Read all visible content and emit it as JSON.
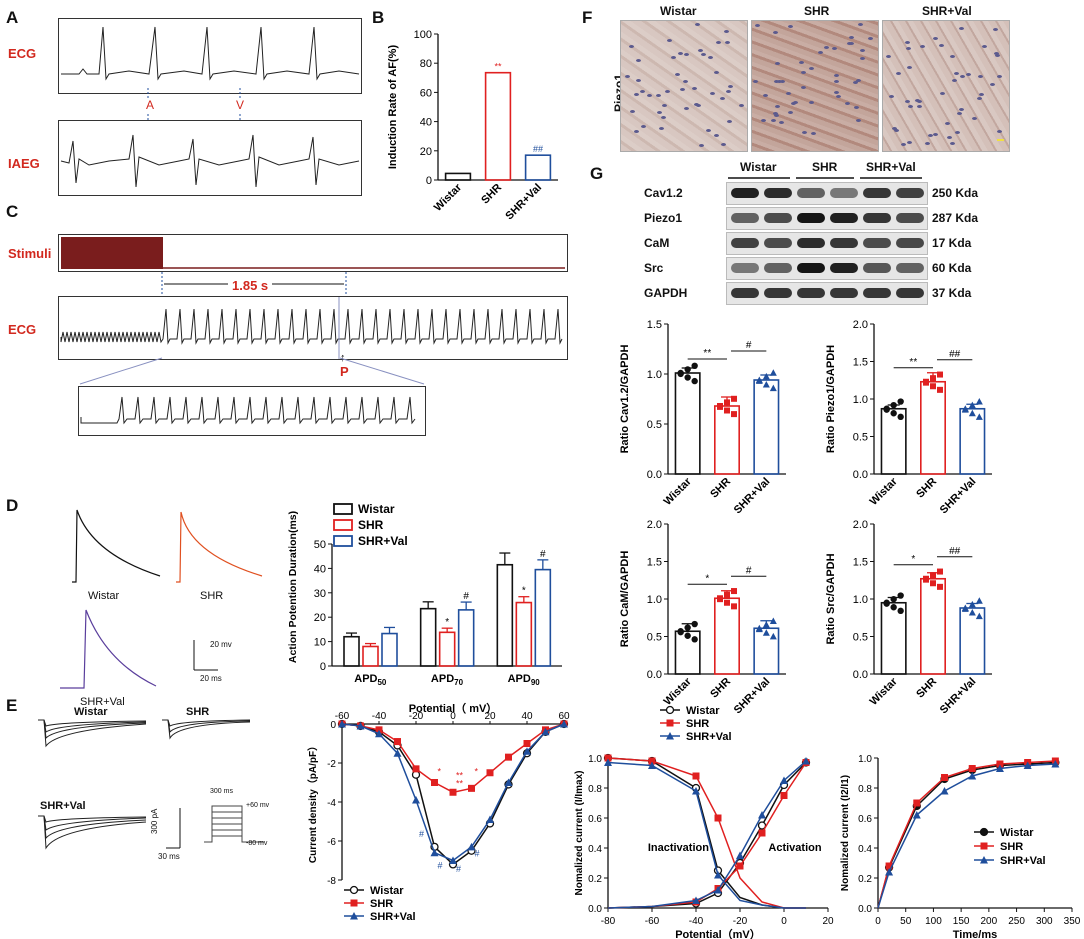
{
  "panels": {
    "A": {
      "letter": "A",
      "ecg_label": "ECG",
      "iaeg_label": "IAEG",
      "marker_a": "A",
      "marker_v": "V"
    },
    "B": {
      "letter": "B"
    },
    "C": {
      "letter": "C",
      "stimuli_label": "Stimuli",
      "ecg_label": "ECG",
      "interval_label": "1.85 s",
      "p_marker": "P"
    },
    "D": {
      "letter": "D",
      "trace_labels": [
        "Wistar",
        "SHR",
        "SHR+Val"
      ],
      "scale_v": "20 mv",
      "scale_t": "20 ms"
    },
    "E": {
      "letter": "E",
      "trace_labels": [
        "Wistar",
        "SHR",
        "SHR+Val"
      ],
      "scale_i": "300 pA",
      "scale_t": "30 ms",
      "protocol_time": "300 ms",
      "protocol_top": "+60 mv",
      "protocol_bottom": "-80 mv",
      "inactivation_label": "Inactivation",
      "activation_label": "Activation"
    },
    "F": {
      "letter": "F",
      "row_label": "Piezo1",
      "columns": [
        "Wistar",
        "SHR",
        "SHR+Val"
      ]
    },
    "G": {
      "letter": "G",
      "groups": [
        "Wistar",
        "SHR",
        "SHR+Val"
      ],
      "bands": [
        {
          "name": "Cav1.2",
          "size": "250 Kda"
        },
        {
          "name": "Piezo1",
          "size": "287 Kda"
        },
        {
          "name": "CaM",
          "size": "17 Kda"
        },
        {
          "name": "Src",
          "size": "60 Kda"
        },
        {
          "name": "GAPDH",
          "size": "37 Kda"
        }
      ]
    }
  },
  "colors": {
    "wistar": "#111111",
    "shr": "#e02020",
    "val": "#1f4e9c",
    "label_red": "#d2281e"
  },
  "chart_data": [
    {
      "id": "B",
      "type": "bar",
      "categories": [
        "Wistar",
        "SHR",
        "SHR+Val"
      ],
      "values": [
        4.5,
        73.5,
        17
      ],
      "ylabel": "Induction Rate of AF(%)",
      "ylim": [
        0,
        100
      ],
      "yticks": [
        "0",
        "20",
        "40",
        "60",
        "80",
        "100"
      ],
      "annotations": [
        "",
        "**",
        "##"
      ]
    },
    {
      "id": "D",
      "type": "bar",
      "categories": [
        "APD50",
        "APD70",
        "APD90"
      ],
      "category_labels": [
        {
          "main": "APD",
          "sub": "50"
        },
        {
          "main": "APD",
          "sub": "70"
        },
        {
          "main": "APD",
          "sub": "90"
        }
      ],
      "series": [
        {
          "name": "Wistar",
          "values": [
            12,
            23.5,
            41.5
          ],
          "err": [
            1.5,
            2.8,
            4.8
          ]
        },
        {
          "name": "SHR",
          "values": [
            8,
            13.8,
            26
          ],
          "err": [
            1.2,
            1.7,
            2.4
          ]
        },
        {
          "name": "SHR+Val",
          "values": [
            13.3,
            23,
            39.5
          ],
          "err": [
            2.5,
            3.2,
            4
          ]
        }
      ],
      "ylabel": "Action Potention Duration(ms)",
      "ylim": [
        0,
        50
      ],
      "yticks": [
        "0",
        "10",
        "20",
        "30",
        "40",
        "50"
      ],
      "annotations": [
        [
          "",
          "",
          ""
        ],
        [
          "",
          "*",
          "#"
        ],
        [
          "",
          "*",
          "#"
        ]
      ]
    },
    {
      "id": "E2",
      "type": "line",
      "xlabel": "Potential（ mV）",
      "ylabel": "Current density（pA/pF）",
      "x": [
        -60,
        -50,
        -40,
        -30,
        -20,
        -10,
        0,
        10,
        20,
        30,
        40,
        50,
        60
      ],
      "xticks": [
        "-60",
        "-40",
        "-20",
        "0",
        "20",
        "40",
        "60"
      ],
      "yticks": [
        "0",
        "-2",
        "-4",
        "-6",
        "-8"
      ],
      "ylim": [
        -8,
        0
      ],
      "series": [
        {
          "name": "Wistar",
          "values": [
            0,
            -0.1,
            -0.4,
            -1.1,
            -2.6,
            -6.3,
            -7.2,
            -6.5,
            -5.1,
            -3.1,
            -1.5,
            -0.4,
            0
          ]
        },
        {
          "name": "SHR",
          "values": [
            0,
            -0.1,
            -0.3,
            -0.9,
            -2.3,
            -3.0,
            -3.5,
            -3.3,
            -2.5,
            -1.7,
            -1.0,
            -0.3,
            0
          ]
        },
        {
          "name": "SHR+Val",
          "values": [
            0,
            -0.1,
            -0.5,
            -1.5,
            -3.9,
            -6.6,
            -7.0,
            -6.3,
            -4.9,
            -3.0,
            -1.4,
            -0.4,
            0
          ]
        }
      ],
      "annotations": [
        "*",
        "**",
        "**",
        "*",
        "#",
        "#",
        "#",
        "#"
      ]
    },
    {
      "id": "E3",
      "type": "line",
      "xlabel": "Potential（mV）",
      "ylabel": "Nomalized current (I/Imax)",
      "xticks": [
        "-80",
        "-60",
        "-40",
        "-20",
        "0",
        "20"
      ],
      "yticks": [
        "0.0",
        "0.2",
        "0.4",
        "0.6",
        "0.8",
        "1.0"
      ],
      "xlim": [
        -80,
        20
      ],
      "ylim": [
        0,
        1
      ],
      "inactivation_x": [
        -80,
        -60,
        -40,
        -30,
        -20,
        -10,
        0,
        10
      ],
      "series": [
        {
          "name": "Wistar",
          "inact": [
            1,
            0.98,
            0.8,
            0.25,
            0.07,
            0.02,
            0,
            0
          ],
          "act": [
            0,
            0.01,
            0.03,
            0.1,
            0.3,
            0.55,
            0.82,
            0.97
          ]
        },
        {
          "name": "SHR",
          "inact": [
            1,
            0.98,
            0.88,
            0.6,
            0.2,
            0.04,
            0,
            0
          ],
          "act": [
            0,
            0.01,
            0.04,
            0.13,
            0.28,
            0.5,
            0.75,
            0.97
          ]
        },
        {
          "name": "SHR+Val",
          "inact": [
            0.97,
            0.95,
            0.78,
            0.22,
            0.05,
            0.02,
            0,
            0
          ],
          "act": [
            0,
            0.01,
            0.05,
            0.12,
            0.35,
            0.62,
            0.85,
            0.98
          ]
        }
      ]
    },
    {
      "id": "E4",
      "type": "line",
      "xlabel": "Time/ms",
      "ylabel": "Nomalized current (I2/I1)",
      "x": [
        0,
        20,
        70,
        120,
        170,
        220,
        270,
        320
      ],
      "xticks": [
        "0",
        "50",
        "100",
        "150",
        "200",
        "250",
        "300",
        "350"
      ],
      "yticks": [
        "0.0",
        "0.2",
        "0.4",
        "0.6",
        "0.8",
        "1.0"
      ],
      "xlim": [
        0,
        350
      ],
      "ylim": [
        0,
        1
      ],
      "series": [
        {
          "name": "Wistar",
          "values": [
            0,
            0.27,
            0.68,
            0.86,
            0.92,
            0.95,
            0.96,
            0.97
          ]
        },
        {
          "name": "SHR",
          "values": [
            0,
            0.28,
            0.7,
            0.87,
            0.93,
            0.96,
            0.97,
            0.98
          ]
        },
        {
          "name": "SHR+Val",
          "values": [
            0,
            0.24,
            0.62,
            0.78,
            0.88,
            0.93,
            0.95,
            0.96
          ]
        }
      ]
    },
    {
      "id": "G1",
      "type": "bar",
      "categories": [
        "Wistar",
        "SHR",
        "SHR+Val"
      ],
      "values": [
        1.01,
        0.68,
        0.94
      ],
      "err": [
        0.05,
        0.09,
        0.05
      ],
      "ylabel": "Ratio Cav1.2/GAPDH",
      "ylim": [
        0,
        1.5
      ],
      "yticks": [
        "0.0",
        "0.5",
        "1.0",
        "1.5"
      ],
      "sig": [
        "**",
        "#"
      ]
    },
    {
      "id": "G2",
      "type": "bar",
      "categories": [
        "Wistar",
        "SHR",
        "SHR+Val"
      ],
      "values": [
        0.87,
        1.23,
        0.87
      ],
      "err": [
        0.05,
        0.12,
        0.06
      ],
      "ylabel": "Ratio Piezo1/GAPDH",
      "ylim": [
        0,
        2.0
      ],
      "yticks": [
        "0.0",
        "0.5",
        "1.0",
        "1.5",
        "2.0"
      ],
      "sig": [
        "**",
        "##"
      ]
    },
    {
      "id": "G3",
      "type": "bar",
      "categories": [
        "Wistar",
        "SHR",
        "SHR+Val"
      ],
      "values": [
        0.57,
        1.01,
        0.61
      ],
      "err": [
        0.1,
        0.1,
        0.1
      ],
      "ylabel": "Ratio CaM/GAPDH",
      "ylim": [
        0,
        2.0
      ],
      "yticks": [
        "0.0",
        "0.5",
        "1.0",
        "1.5",
        "2.0"
      ],
      "sig": [
        "*",
        "#"
      ]
    },
    {
      "id": "G4",
      "type": "bar",
      "categories": [
        "Wistar",
        "SHR",
        "SHR+Val"
      ],
      "values": [
        0.95,
        1.27,
        0.88
      ],
      "err": [
        0.07,
        0.08,
        0.06
      ],
      "ylabel": "Ratio Src/GAPDH",
      "ylim": [
        0,
        2.0
      ],
      "yticks": [
        "0.0",
        "0.5",
        "1.0",
        "1.5",
        "2.0"
      ],
      "sig": [
        "*",
        "##"
      ]
    }
  ]
}
